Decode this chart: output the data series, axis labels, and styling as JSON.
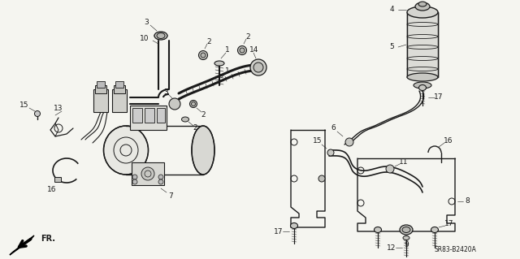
{
  "bg_color": "#f5f5f0",
  "line_color": "#1a1a1a",
  "fig_width": 6.4,
  "fig_height": 3.19,
  "dpi": 100,
  "diagram_code_id": "SR83-B2420A",
  "fr_label": "FR."
}
